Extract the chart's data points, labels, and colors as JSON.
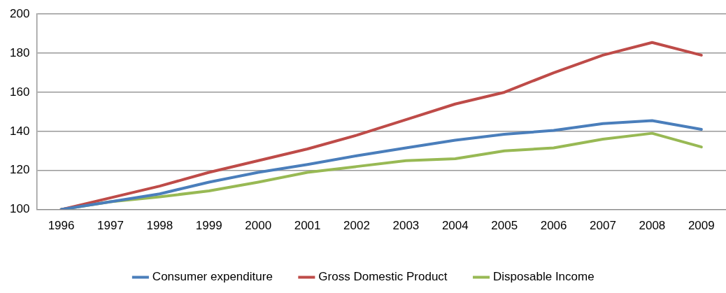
{
  "chart_data": {
    "type": "line",
    "categories": [
      "1996",
      "1997",
      "1998",
      "1999",
      "2000",
      "2001",
      "2002",
      "2003",
      "2004",
      "2005",
      "2006",
      "2007",
      "2008",
      "2009"
    ],
    "series": [
      {
        "name": "Consumer expenditure",
        "color": "#4a7ebb",
        "values": [
          100,
          104,
          108,
          114,
          119,
          123,
          127.5,
          131.5,
          135.5,
          138.5,
          140.5,
          144,
          145.5,
          141
        ]
      },
      {
        "name": "Gross Domestic Product",
        "color": "#be4b48",
        "values": [
          100,
          106,
          112,
          119,
          125,
          131,
          138,
          146,
          154,
          160,
          170,
          179,
          185.5,
          179
        ]
      },
      {
        "name": "Disposable Income",
        "color": "#98b954",
        "values": [
          100,
          104,
          106.5,
          109.5,
          114,
          119,
          122,
          125,
          126,
          130,
          131.5,
          136,
          139,
          132
        ]
      }
    ],
    "ylim": [
      100,
      200
    ],
    "yticks": [
      100,
      120,
      140,
      160,
      180,
      200
    ],
    "grid": "y",
    "legend": "bottom",
    "marker": "none",
    "line_style": "solid"
  }
}
